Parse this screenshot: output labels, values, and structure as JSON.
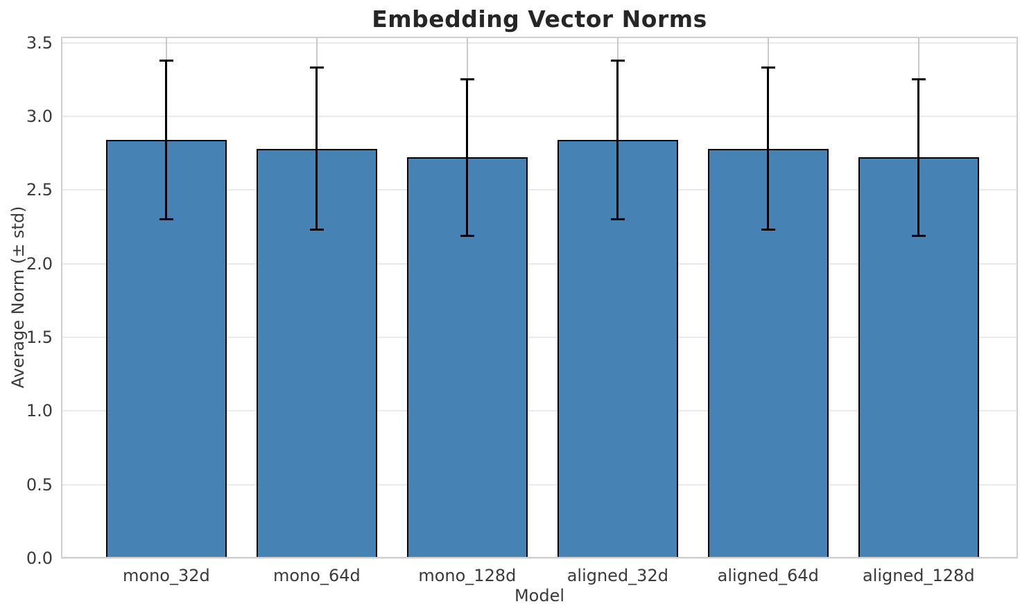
{
  "chart_data": {
    "type": "bar",
    "title": "Embedding Vector Norms",
    "xlabel": "Model",
    "ylabel": "Average Norm (± std)",
    "categories": [
      "mono_32d",
      "mono_64d",
      "mono_128d",
      "aligned_32d",
      "aligned_64d",
      "aligned_128d"
    ],
    "series": [
      {
        "name": "Average Norm",
        "values": [
          2.84,
          2.78,
          2.72,
          2.84,
          2.78,
          2.72
        ],
        "errors": [
          0.54,
          0.55,
          0.53,
          0.54,
          0.55,
          0.53
        ]
      }
    ],
    "ylim": [
      0,
      3.54
    ],
    "yticks": [
      0.0,
      0.5,
      1.0,
      1.5,
      2.0,
      2.5,
      3.0,
      3.5
    ],
    "ytick_labels": [
      "0.0",
      "0.5",
      "1.0",
      "1.5",
      "2.0",
      "2.5",
      "3.0",
      "3.5"
    ],
    "grid": "both",
    "legend": "none",
    "bar_width_fraction": 0.8,
    "colors": {
      "bar_fill": "#4682B4",
      "bar_edge": "#000000",
      "error_bar": "#000000",
      "grid_horizontal": "#e9e9e9",
      "grid_vertical": "#c9c9c9",
      "spine": "#cfcfcf",
      "tick_text": "#3a3a3a",
      "title_text": "#262626"
    }
  }
}
